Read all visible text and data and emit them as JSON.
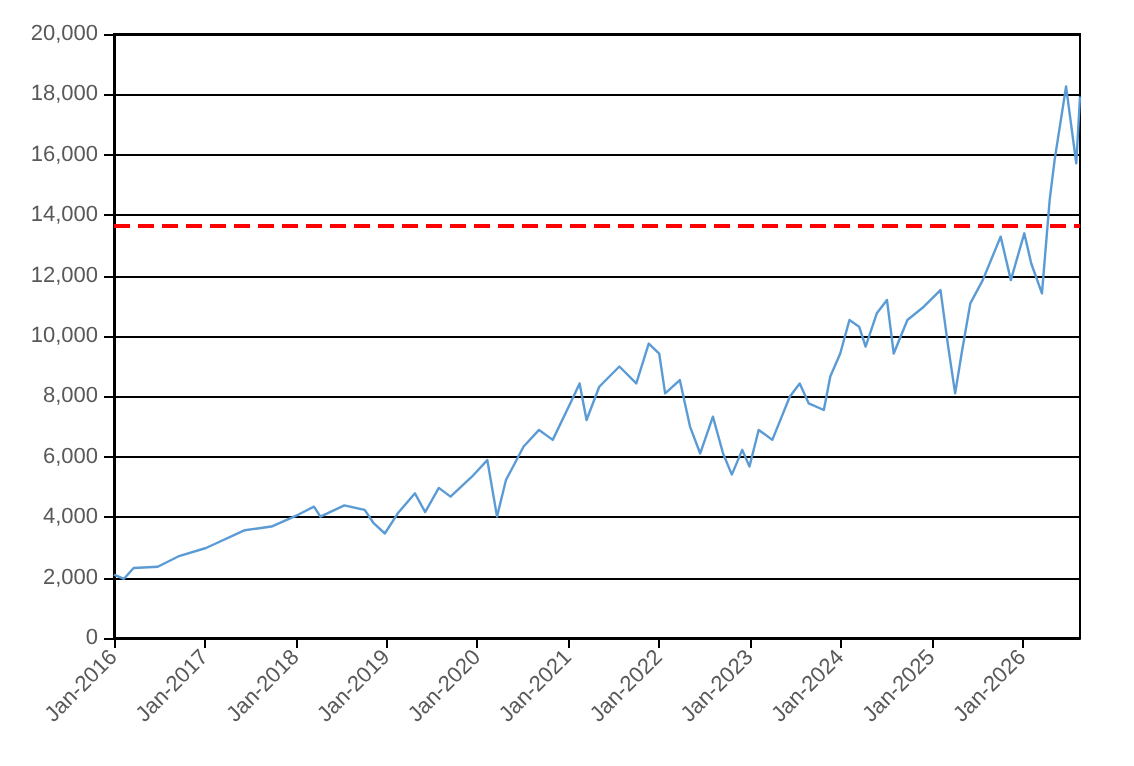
{
  "chart_data": {
    "type": "line",
    "x": [
      "2016-01-01",
      "2016-02-10",
      "2016-03-20",
      "2016-06-25",
      "2016-09-15",
      "2017-01-05",
      "2017-06-10",
      "2017-09-25",
      "2018-01-10",
      "2018-03-15",
      "2018-04-10",
      "2018-07-15",
      "2018-10-05",
      "2018-11-10",
      "2018-12-25",
      "2019-02-15",
      "2019-04-25",
      "2019-06-05",
      "2019-07-30",
      "2019-09-15",
      "2019-12-10",
      "2020-02-10",
      "2020-03-20",
      "2020-04-25",
      "2020-07-05",
      "2020-09-05",
      "2020-10-30",
      "2021-01-15",
      "2021-02-15",
      "2021-03-15",
      "2021-05-05",
      "2021-07-25",
      "2021-10-01",
      "2021-11-20",
      "2022-01-01",
      "2022-01-25",
      "2022-03-25",
      "2022-05-05",
      "2022-06-15",
      "2022-08-05",
      "2022-09-15",
      "2022-10-20",
      "2022-12-01",
      "2022-12-30",
      "2023-02-05",
      "2023-04-01",
      "2023-06-10",
      "2023-07-20",
      "2023-08-25",
      "2023-10-25",
      "2023-11-20",
      "2023-12-30",
      "2024-02-05",
      "2024-03-15",
      "2024-04-10",
      "2024-05-25",
      "2024-07-05",
      "2024-08-01",
      "2024-09-25",
      "2024-11-30",
      "2025-02-05",
      "2025-03-08",
      "2025-04-05",
      "2025-05-01",
      "2025-06-05",
      "2025-07-25",
      "2025-10-05",
      "2025-11-15",
      "2026-01-08",
      "2026-02-05",
      "2026-03-20",
      "2026-04-20",
      "2026-05-10",
      "2026-06-25",
      "2026-08-05",
      "2026-08-20"
    ],
    "series": [
      {
        "color": "#5b9bd5",
        "values": [
          2100,
          1960,
          2320,
          2360,
          2700,
          2980,
          3570,
          3690,
          4080,
          4350,
          4020,
          4390,
          4240,
          3800,
          3460,
          4130,
          4790,
          4170,
          4970,
          4680,
          5340,
          5890,
          4020,
          5230,
          6340,
          6890,
          6560,
          7880,
          8430,
          7220,
          8320,
          8990,
          8430,
          9750,
          9420,
          8100,
          8540,
          7000,
          6110,
          7330,
          6110,
          5410,
          6230,
          5680,
          6890,
          6560,
          7990,
          8430,
          7770,
          7550,
          8660,
          9420,
          10530,
          10310,
          9650,
          10750,
          11190,
          9420,
          10530,
          10970,
          11520,
          9650,
          8100,
          9420,
          11080,
          11850,
          13290,
          11850,
          13400,
          12400,
          11410,
          14500,
          15830,
          18260,
          15720,
          17930
        ]
      }
    ],
    "xlim": [
      "2016-01-01",
      "2026-08-20"
    ],
    "xticks": [
      {
        "value": "2016-01",
        "label": "Jan-2016"
      },
      {
        "value": "2017-01",
        "label": "Jan-2017"
      },
      {
        "value": "2018-01",
        "label": "Jan-2018"
      },
      {
        "value": "2019-01",
        "label": "Jan-2019"
      },
      {
        "value": "2020-01",
        "label": "Jan-2020"
      },
      {
        "value": "2021-01",
        "label": "Jan-2021"
      },
      {
        "value": "2022-01",
        "label": "Jan-2022"
      },
      {
        "value": "2023-01",
        "label": "Jan-2023"
      },
      {
        "value": "2024-01",
        "label": "Jan-2024"
      },
      {
        "value": "2025-01",
        "label": "Jan-2025"
      },
      {
        "value": "2026-01",
        "label": "Jan-2026"
      }
    ],
    "ylim": [
      0,
      20000
    ],
    "yticks": [
      0,
      {
        "value": 2000,
        "label": "2,000"
      },
      {
        "value": 4000,
        "label": "4,000"
      },
      {
        "value": 6000,
        "label": "6,000"
      },
      {
        "value": 8000,
        "label": "8,000"
      },
      {
        "value": 10000,
        "label": "10,000"
      },
      {
        "value": 12000,
        "label": "12,000"
      },
      {
        "value": 14000,
        "label": "14,000"
      },
      {
        "value": 16000,
        "label": "16,000"
      },
      {
        "value": 18000,
        "label": "18,000"
      },
      {
        "value": 20000,
        "label": "20,000"
      }
    ],
    "grid": "y",
    "marker": "none",
    "line_style": "solid",
    "ref_lines": [
      {
        "axis": "y",
        "value": 13650,
        "color": "#ff0000",
        "line_style": "dashed"
      }
    ]
  }
}
